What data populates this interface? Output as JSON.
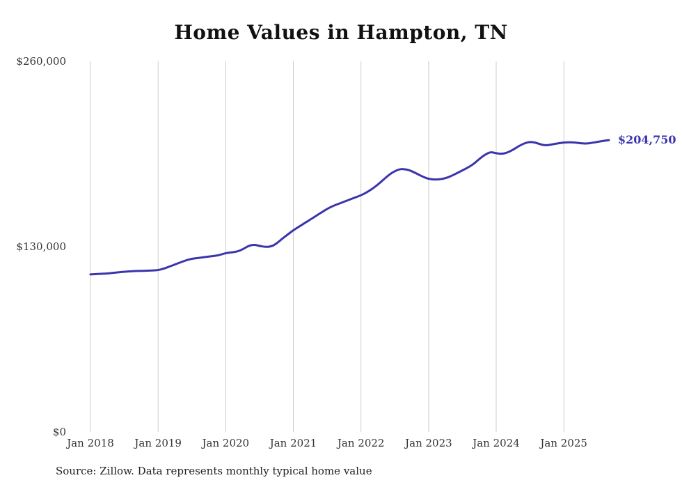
{
  "title": "Home Values in Hampton, TN",
  "source_note": "Source: Zillow. Data represents monthly typical home value",
  "colors": {
    "line": "#3a34ad",
    "gridline": "#cccccc",
    "tick_label": "#333333",
    "title": "#111111",
    "source": "#222222",
    "background": "#ffffff"
  },
  "chart_data": {
    "type": "line",
    "title": "Home Values in Hampton, TN",
    "x_unit": "month",
    "x_start": "2018-01",
    "x_end": "2025-09",
    "ylim": [
      0,
      260000
    ],
    "grid": "vertical-only",
    "legend": "none",
    "end_label": "$204,750",
    "end_value": 204750,
    "yticks": [
      {
        "value": 0,
        "label": "$0"
      },
      {
        "value": 130000,
        "label": "$130,000"
      },
      {
        "value": 260000,
        "label": "$260,000"
      }
    ],
    "xticks": [
      {
        "index": 0,
        "label": "Jan 2018"
      },
      {
        "index": 12,
        "label": "Jan 2019"
      },
      {
        "index": 24,
        "label": "Jan 2020"
      },
      {
        "index": 36,
        "label": "Jan 2021"
      },
      {
        "index": 48,
        "label": "Jan 2022"
      },
      {
        "index": 60,
        "label": "Jan 2023"
      },
      {
        "index": 72,
        "label": "Jan 2024"
      },
      {
        "index": 84,
        "label": "Jan 2025"
      }
    ],
    "series": [
      {
        "name": "Monthly typical home value",
        "values": [
          110500,
          110800,
          111000,
          111200,
          111600,
          112000,
          112400,
          112700,
          112900,
          113000,
          113100,
          113300,
          113500,
          114500,
          116000,
          117500,
          119000,
          120500,
          121500,
          122000,
          122500,
          123000,
          123500,
          124200,
          125500,
          126000,
          126500,
          128000,
          130500,
          131500,
          130500,
          129800,
          130000,
          132000,
          135500,
          138500,
          141500,
          144000,
          146500,
          149000,
          151500,
          154000,
          156500,
          158500,
          160000,
          161500,
          163000,
          164500,
          166000,
          168000,
          170500,
          173500,
          177000,
          180500,
          183000,
          184500,
          184300,
          183000,
          181000,
          179000,
          177500,
          177000,
          177200,
          178000,
          179500,
          181500,
          183500,
          185500,
          188000,
          191500,
          194500,
          196500,
          195500,
          195000,
          196000,
          198000,
          200500,
          202500,
          203500,
          203000,
          201500,
          201000,
          201800,
          202500,
          203000,
          203200,
          203000,
          202500,
          202300,
          202800,
          203500,
          204200,
          204750
        ]
      }
    ]
  }
}
